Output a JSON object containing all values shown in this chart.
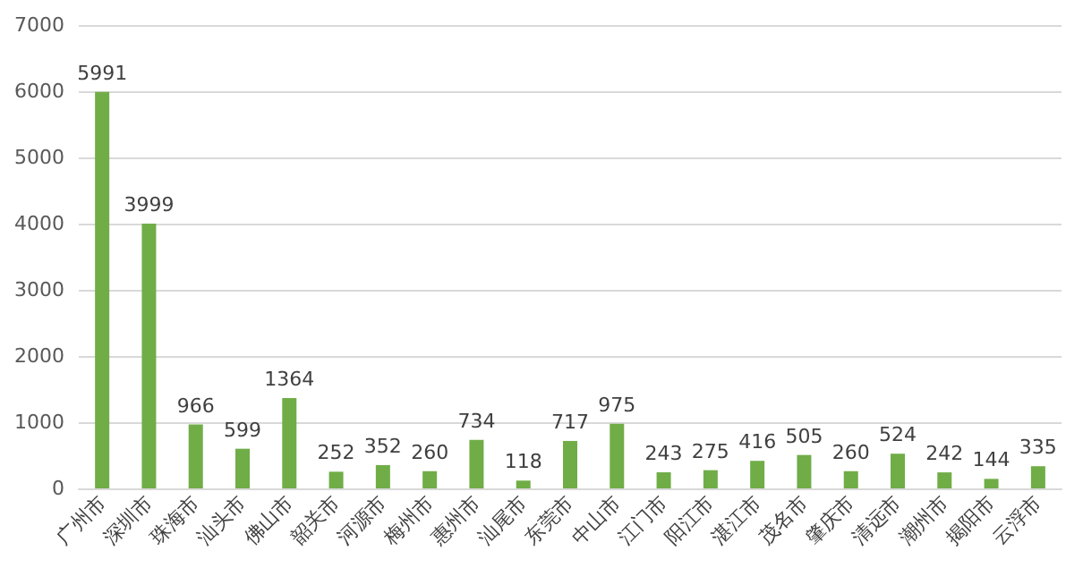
{
  "chart_data": {
    "type": "bar",
    "categories": [
      "广州市",
      "深圳市",
      "珠海市",
      "汕头市",
      "佛山市",
      "韶关市",
      "河源市",
      "梅州市",
      "惠州市",
      "汕尾市",
      "东莞市",
      "中山市",
      "江门市",
      "阳江市",
      "湛江市",
      "茂名市",
      "肇庆市",
      "清远市",
      "潮州市",
      "揭阳市",
      "云浮市"
    ],
    "values": [
      5991,
      3999,
      966,
      599,
      1364,
      252,
      352,
      260,
      734,
      118,
      717,
      975,
      243,
      275,
      416,
      505,
      260,
      524,
      242,
      144,
      335
    ],
    "color": "#70ad47",
    "ylim": [
      0,
      7000
    ],
    "yticks": [
      0,
      1000,
      2000,
      3000,
      4000,
      5000,
      6000,
      7000
    ],
    "grid": "y",
    "data_labels": true
  }
}
